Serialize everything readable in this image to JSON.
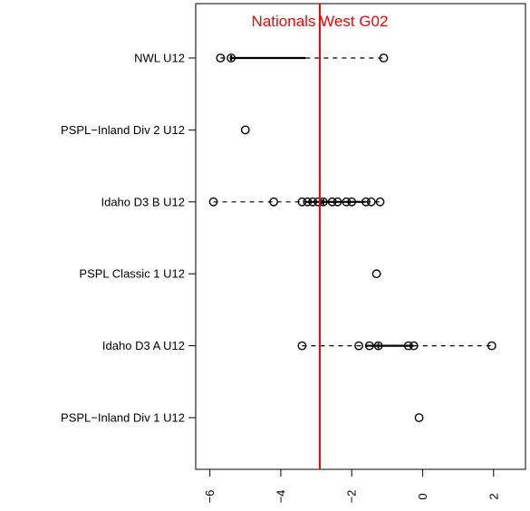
{
  "colors": {
    "reference": "#ff0000",
    "ink": "#000000",
    "background": "#ffffff"
  },
  "chart_data": {
    "type": "scatter",
    "subtype": "horizontal box-and-whisker with points overlaid",
    "orientation": "horizontal",
    "categories": [
      "NWL U12",
      "PSPL−Inland Div 2 U12",
      "Idaho D3 B U12",
      "PSPL Classic 1 U12",
      "Idaho D3 A U12",
      "PSPL−Inland Div 1 U12"
    ],
    "x_ticks": [
      -6,
      -4,
      -2,
      0,
      2
    ],
    "x_tick_labels": [
      "−6",
      "−4",
      "−2",
      "0",
      "2"
    ],
    "xlim": [
      -6.4,
      2.9
    ],
    "grid": false,
    "series": [
      {
        "category": "NWL U12",
        "points": [
          -5.7,
          -5.4,
          -1.1
        ],
        "whisker": [
          -5.7,
          -1.1
        ],
        "box": [
          -5.4,
          -3.3
        ],
        "median": -5.4
      },
      {
        "category": "PSPL−Inland Div 2 U12",
        "points": [
          -5.0
        ]
      },
      {
        "category": "Idaho D3 B U12",
        "points": [
          -5.9,
          -4.2,
          -3.4,
          -3.25,
          -3.1,
          -2.95,
          -2.8,
          -2.55,
          -2.4,
          -2.15,
          -2.0,
          -1.6,
          -1.45,
          -1.2
        ],
        "whisker": [
          -5.9,
          -1.2
        ],
        "box": [
          -3.3,
          -1.6
        ],
        "median": -2.8
      },
      {
        "category": "PSPL Classic 1 U12",
        "points": [
          -1.3
        ]
      },
      {
        "category": "Idaho D3 A U12",
        "points": [
          -3.4,
          -1.8,
          -1.5,
          -1.25,
          -0.4,
          -0.25,
          1.95
        ],
        "whisker": [
          -3.4,
          1.95
        ],
        "box": [
          -1.6,
          -0.25
        ],
        "median": -1.25
      },
      {
        "category": "PSPL−Inland Div 1 U12",
        "points": [
          -0.1
        ]
      }
    ],
    "reference_line": {
      "x": -2.9,
      "label": "Nationals West G02"
    }
  }
}
